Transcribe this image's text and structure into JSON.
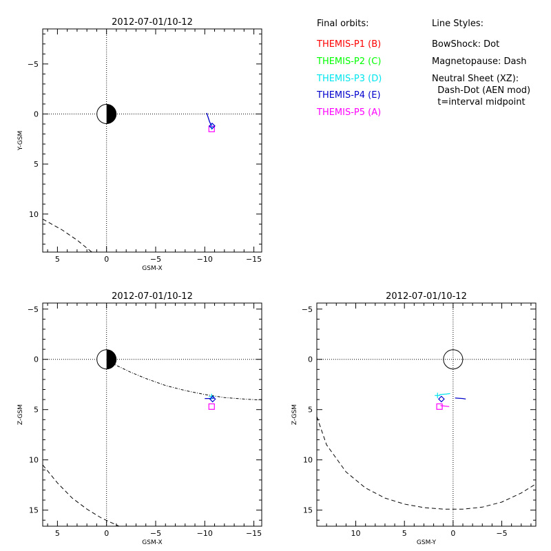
{
  "legend": {
    "orbits_title": "Final orbits:",
    "probes": [
      {
        "label": "THEMIS-P1 (B)",
        "color": "#ff0000"
      },
      {
        "label": "THEMIS-P2 (C)",
        "color": "#00ff00"
      },
      {
        "label": "THEMIS-P3 (D)",
        "color": "#00e5ee"
      },
      {
        "label": "THEMIS-P4 (E)",
        "color": "#0000cc"
      },
      {
        "label": "THEMIS-P5 (A)",
        "color": "#ff00ff"
      }
    ],
    "styles_title": "Line Styles:",
    "styles": [
      "BowShock: Dot",
      "Magnetopause: Dash",
      "Neutral Sheet (XZ):",
      "  Dash-Dot (AEN mod)",
      "  t=interval midpoint"
    ]
  },
  "chart_data": [
    {
      "type": "line",
      "name": "xy",
      "title": "2012-07-01/10-12",
      "xlabel": "GSM-X",
      "ylabel": "Y-GSM",
      "xlim": [
        6.5,
        -15.8
      ],
      "ylim": [
        -8.5,
        13.8
      ],
      "xticks": [
        5,
        0,
        -5,
        -10,
        -15
      ],
      "yticks": [
        -5,
        0,
        5,
        10
      ],
      "magnetopause": [
        [
          6.5,
          10.5
        ],
        [
          4.5,
          11.6
        ],
        [
          3.0,
          12.6
        ],
        [
          1.5,
          13.8
        ]
      ],
      "orbit": [
        [
          -10.2,
          -0.1
        ],
        [
          -10.5,
          0.8
        ],
        [
          -10.7,
          1.2
        ]
      ],
      "markers": [
        {
          "probe": "THEMIS-P3 (D)",
          "symbol": "plus",
          "x": -10.7,
          "y": 1.3,
          "color": "#00e5ee"
        },
        {
          "probe": "THEMIS-P5 (A)",
          "symbol": "square",
          "x": -10.7,
          "y": 1.5,
          "color": "#ff00ff"
        },
        {
          "probe": "THEMIS-P4 (E)",
          "symbol": "diamond",
          "x": -10.75,
          "y": 1.2,
          "color": "#0000cc"
        }
      ]
    },
    {
      "type": "line",
      "name": "xz",
      "title": "2012-07-01/10-12",
      "xlabel": "GSM-X",
      "ylabel": "Z-GSM",
      "xlim": [
        6.5,
        -15.8
      ],
      "ylim": [
        -5.6,
        16.6
      ],
      "xticks": [
        5,
        0,
        -5,
        -10,
        -15
      ],
      "yticks": [
        -5,
        0,
        5,
        10,
        15
      ],
      "magnetopause": [
        [
          6.5,
          10.5
        ],
        [
          5.0,
          12.3
        ],
        [
          3.5,
          13.8
        ],
        [
          2.0,
          14.9
        ],
        [
          0.5,
          15.8
        ],
        [
          -1.5,
          16.7
        ]
      ],
      "neutral_sheet": [
        [
          0.0,
          0.0
        ],
        [
          -1.0,
          0.6
        ],
        [
          -2.5,
          1.3
        ],
        [
          -4.0,
          1.9
        ],
        [
          -6.0,
          2.6
        ],
        [
          -8.0,
          3.1
        ],
        [
          -10.0,
          3.5
        ],
        [
          -12.0,
          3.8
        ],
        [
          -14.0,
          3.95
        ],
        [
          -15.8,
          4.05
        ]
      ],
      "orbit": [
        [
          -10.0,
          3.9
        ],
        [
          -10.6,
          3.9
        ],
        [
          -11.0,
          3.85
        ]
      ],
      "markers": [
        {
          "probe": "THEMIS-P3 (D)",
          "symbol": "plus",
          "x": -10.7,
          "y": 3.7,
          "color": "#00e5ee"
        },
        {
          "probe": "THEMIS-P5 (A)",
          "symbol": "square",
          "x": -10.7,
          "y": 4.7,
          "color": "#ff00ff"
        },
        {
          "probe": "THEMIS-P4 (E)",
          "symbol": "diamond",
          "x": -10.8,
          "y": 3.95,
          "color": "#0000cc"
        }
      ]
    },
    {
      "type": "line",
      "name": "yz",
      "title": "2012-07-01/10-12",
      "xlabel": "GSM-Y",
      "ylabel": "Z-GSM",
      "xlim": [
        14.0,
        -8.5
      ],
      "ylim": [
        -5.6,
        16.6
      ],
      "xticks": [
        10,
        5,
        0,
        -5
      ],
      "yticks": [
        -5,
        0,
        5,
        10,
        15
      ],
      "magnetopause": [
        [
          14.0,
          5.7
        ],
        [
          13.0,
          8.5
        ],
        [
          11.0,
          11.2
        ],
        [
          9.0,
          12.8
        ],
        [
          7.0,
          13.8
        ],
        [
          5.0,
          14.4
        ],
        [
          3.0,
          14.75
        ],
        [
          1.0,
          14.9
        ],
        [
          -1.0,
          14.9
        ],
        [
          -3.0,
          14.7
        ],
        [
          -5.0,
          14.2
        ],
        [
          -7.0,
          13.3
        ],
        [
          -8.5,
          12.4
        ]
      ],
      "orbit": [
        [
          -0.2,
          3.85
        ],
        [
          -1.0,
          3.9
        ],
        [
          -1.3,
          3.95
        ]
      ],
      "p3_path": [
        [
          1.4,
          3.5
        ],
        [
          0.7,
          3.45
        ],
        [
          0.3,
          3.4
        ]
      ],
      "p5_path": [
        [
          1.3,
          4.6
        ],
        [
          0.4,
          4.7
        ]
      ],
      "markers": [
        {
          "probe": "THEMIS-P3 (D)",
          "symbol": "plus",
          "x": 1.6,
          "y": 3.6,
          "color": "#00e5ee"
        },
        {
          "probe": "THEMIS-P5 (A)",
          "symbol": "square",
          "x": 1.4,
          "y": 4.7,
          "color": "#ff00ff"
        },
        {
          "probe": "THEMIS-P4 (E)",
          "symbol": "diamond",
          "x": 1.2,
          "y": 3.95,
          "color": "#0000cc"
        }
      ]
    }
  ]
}
